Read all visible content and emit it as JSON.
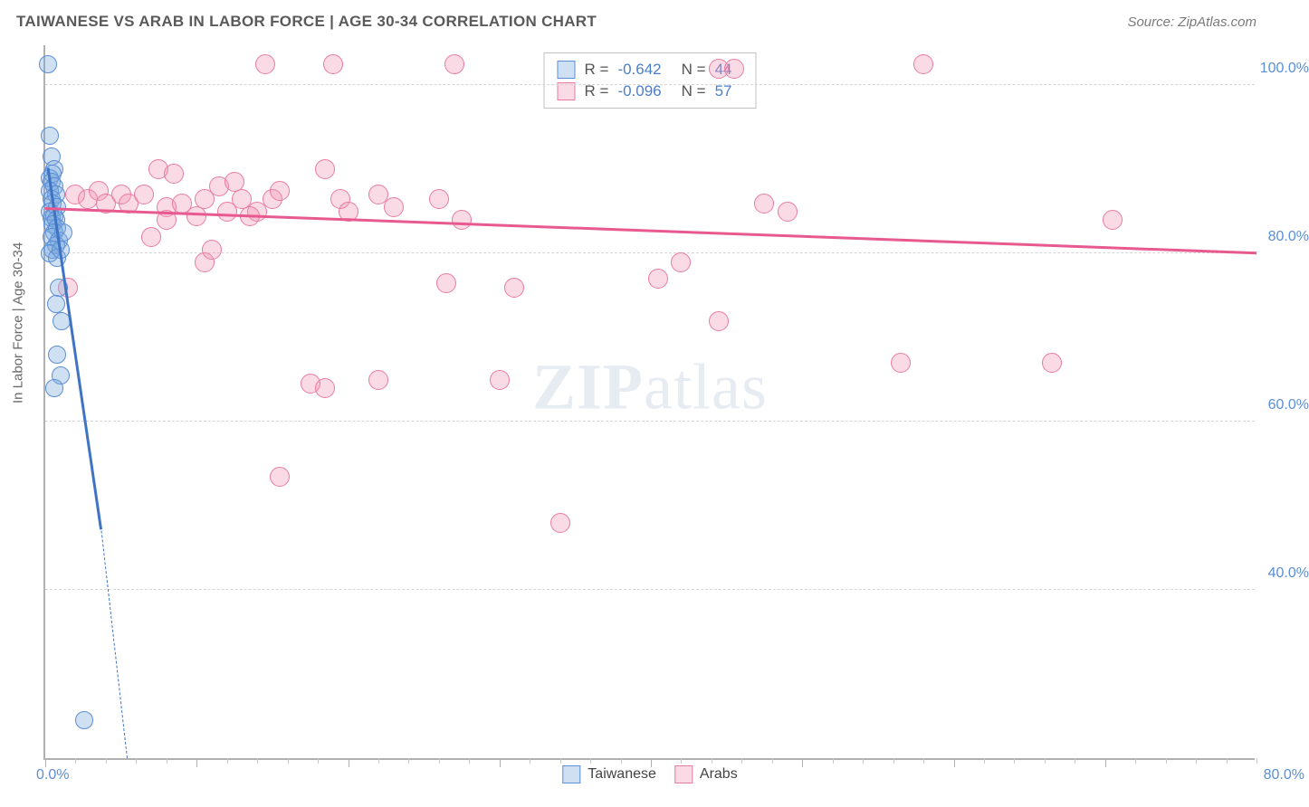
{
  "header": {
    "title": "TAIWANESE VS ARAB IN LABOR FORCE | AGE 30-34 CORRELATION CHART",
    "source": "Source: ZipAtlas.com"
  },
  "axis": {
    "y_title": "In Labor Force | Age 30-34",
    "x_min_label": "0.0%",
    "x_max_label": "80.0%",
    "y_ticks": [
      {
        "v": 40.0,
        "label": "40.0%"
      },
      {
        "v": 60.0,
        "label": "60.0%"
      },
      {
        "v": 80.0,
        "label": "80.0%"
      },
      {
        "v": 100.0,
        "label": "100.0%"
      }
    ],
    "x_domain": [
      0,
      80
    ],
    "y_domain": [
      20,
      105
    ],
    "x_major_ticks": [
      0,
      10,
      20,
      30,
      40,
      50,
      60,
      70
    ],
    "x_minor_step": 2
  },
  "series": {
    "taiwanese": {
      "label": "Taiwanese",
      "fill": "rgba(120,165,220,0.35)",
      "stroke": "#5b8fd6",
      "marker_radius": 10,
      "trend_color": "#3f74c4",
      "trend_width": 3,
      "trend_p1": [
        0.2,
        90.0
      ],
      "trend_p2": [
        3.7,
        47.0
      ],
      "trend_dash_p1": [
        3.7,
        47.0
      ],
      "trend_dash_p2": [
        5.4,
        20.0
      ],
      "points": [
        [
          0.2,
          102.5
        ],
        [
          0.3,
          94.0
        ],
        [
          0.4,
          91.5
        ],
        [
          0.6,
          90.0
        ],
        [
          0.3,
          89.0
        ],
        [
          0.5,
          89.5
        ],
        [
          0.4,
          88.5
        ],
        [
          0.6,
          88.0
        ],
        [
          0.3,
          87.5
        ],
        [
          0.7,
          87.0
        ],
        [
          0.4,
          86.5
        ],
        [
          0.5,
          86.0
        ],
        [
          0.8,
          85.5
        ],
        [
          0.3,
          85.0
        ],
        [
          0.6,
          84.5
        ],
        [
          0.4,
          84.2
        ],
        [
          0.7,
          84.0
        ],
        [
          0.5,
          83.5
        ],
        [
          0.8,
          83.0
        ],
        [
          0.6,
          82.5
        ],
        [
          0.4,
          82.0
        ],
        [
          0.9,
          81.5
        ],
        [
          0.7,
          81.0
        ],
        [
          0.5,
          80.5
        ],
        [
          0.3,
          80.0
        ],
        [
          0.8,
          79.5
        ],
        [
          1.2,
          82.5
        ],
        [
          1.0,
          80.5
        ],
        [
          0.9,
          76.0
        ],
        [
          0.7,
          74.0
        ],
        [
          1.1,
          72.0
        ],
        [
          0.8,
          68.0
        ],
        [
          1.0,
          65.5
        ],
        [
          0.6,
          64.0
        ],
        [
          2.6,
          24.5
        ]
      ]
    },
    "arabs": {
      "label": "Arabs",
      "fill": "rgba(240,150,180,0.35)",
      "stroke": "#e87ba2",
      "marker_radius": 11,
      "trend_color": "#e85a8f",
      "trend_width": 2.5,
      "trend_p1": [
        0,
        85.3
      ],
      "trend_p2": [
        80,
        80.0
      ],
      "points": [
        [
          14.5,
          102.5
        ],
        [
          19.0,
          102.5
        ],
        [
          27.0,
          102.5
        ],
        [
          44.5,
          102.0
        ],
        [
          45.5,
          102.0
        ],
        [
          58.0,
          102.5
        ],
        [
          2.0,
          87.0
        ],
        [
          2.8,
          86.5
        ],
        [
          3.5,
          87.5
        ],
        [
          4.0,
          86.0
        ],
        [
          5.0,
          87.0
        ],
        [
          5.5,
          86.0
        ],
        [
          6.5,
          87.0
        ],
        [
          7.5,
          90.0
        ],
        [
          8.0,
          85.5
        ],
        [
          8.5,
          89.5
        ],
        [
          9.0,
          86.0
        ],
        [
          10.0,
          84.5
        ],
        [
          10.5,
          86.5
        ],
        [
          11.5,
          88.0
        ],
        [
          12.0,
          85.0
        ],
        [
          12.5,
          88.5
        ],
        [
          13.0,
          86.5
        ],
        [
          14.0,
          85.0
        ],
        [
          15.0,
          86.5
        ],
        [
          15.5,
          87.5
        ],
        [
          18.5,
          90.0
        ],
        [
          19.5,
          86.5
        ],
        [
          20.0,
          85.0
        ],
        [
          22.0,
          87.0
        ],
        [
          23.0,
          85.5
        ],
        [
          26.0,
          86.5
        ],
        [
          27.5,
          84.0
        ],
        [
          47.5,
          86.0
        ],
        [
          7.0,
          82.0
        ],
        [
          10.5,
          79.0
        ],
        [
          13.5,
          84.5
        ],
        [
          1.5,
          76.0
        ],
        [
          26.5,
          76.5
        ],
        [
          31.0,
          76.0
        ],
        [
          40.5,
          77.0
        ],
        [
          42.0,
          79.0
        ],
        [
          44.5,
          72.0
        ],
        [
          56.5,
          67.0
        ],
        [
          17.5,
          64.5
        ],
        [
          22.0,
          65.0
        ],
        [
          30.0,
          65.0
        ],
        [
          34.0,
          48.0
        ],
        [
          15.5,
          53.5
        ],
        [
          66.5,
          67.0
        ],
        [
          70.5,
          84.0
        ],
        [
          8.0,
          84.0
        ],
        [
          11.0,
          80.5
        ],
        [
          18.5,
          64.0
        ],
        [
          49.0,
          85.0
        ]
      ]
    }
  },
  "stats": [
    {
      "swatch_fill": "rgba(120,165,220,0.35)",
      "swatch_stroke": "#5b8fd6",
      "r": "-0.642",
      "n": "44"
    },
    {
      "swatch_fill": "rgba(240,150,180,0.35)",
      "swatch_stroke": "#e87ba2",
      "r": "-0.096",
      "n": "57"
    }
  ],
  "watermark": {
    "part1": "ZIP",
    "part2": "atlas"
  },
  "colors": {
    "grid": "#d5d5d5",
    "axis": "#b0b0b0",
    "label": "#5b8fd6"
  }
}
